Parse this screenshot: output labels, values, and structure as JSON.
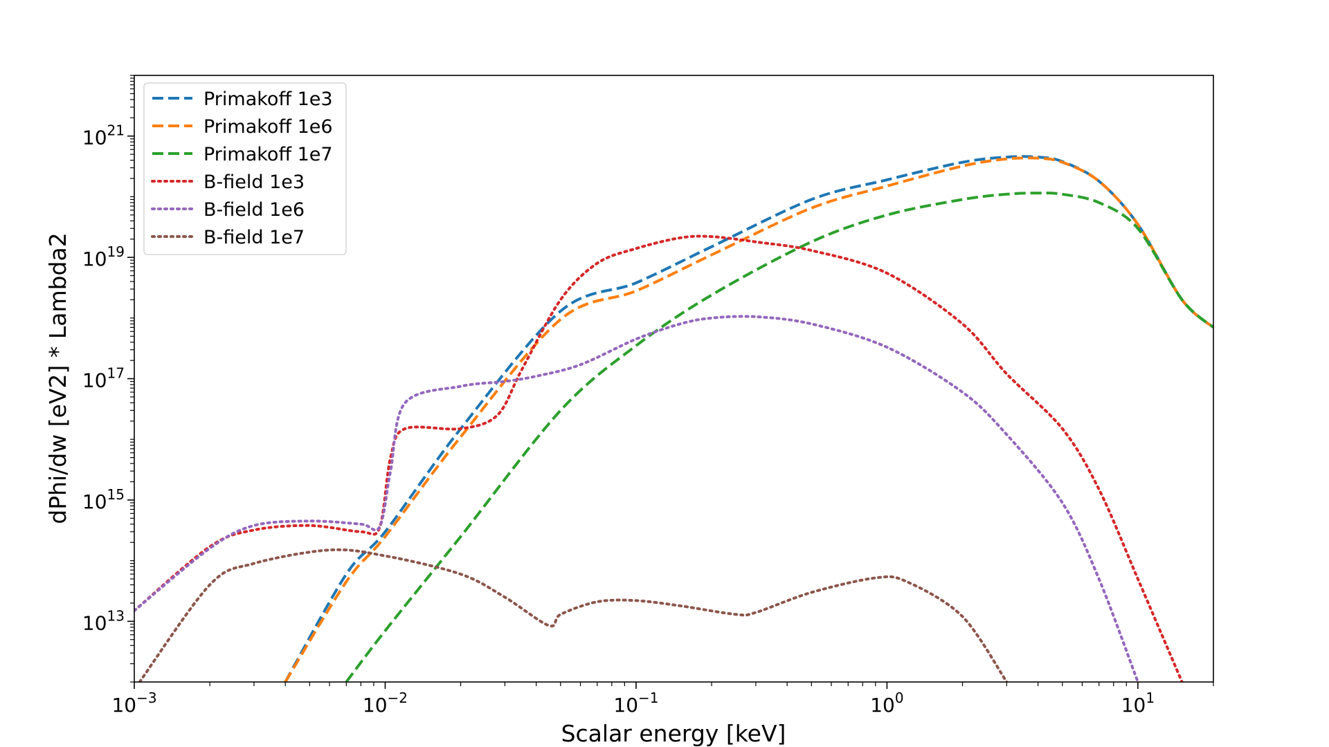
{
  "chart_data": {
    "type": "line",
    "title": "",
    "xlabel": "Scalar energy [keV]",
    "ylabel": "dPhi/dw [eV2] * Lambda2",
    "x_scale": "log",
    "y_scale": "log",
    "xlim": [
      0.001,
      20
    ],
    "ylim": [
      1000000000000.0,
      1e+22
    ],
    "x_ticks": [
      {
        "value": 0.001,
        "base": "10",
        "exp": "−3"
      },
      {
        "value": 0.01,
        "base": "10",
        "exp": "−2"
      },
      {
        "value": 0.1,
        "base": "10",
        "exp": "−1"
      },
      {
        "value": 1,
        "base": "10",
        "exp": "0"
      },
      {
        "value": 10,
        "base": "10",
        "exp": "1"
      }
    ],
    "y_ticks": [
      {
        "value": 10000000000000.0,
        "base": "10",
        "exp": "13"
      },
      {
        "value": 1000000000000000.0,
        "base": "10",
        "exp": "15"
      },
      {
        "value": 1e+17,
        "base": "10",
        "exp": "17"
      },
      {
        "value": 1e+19,
        "base": "10",
        "exp": "19"
      },
      {
        "value": 1e+21,
        "base": "10",
        "exp": "21"
      }
    ],
    "grid": false,
    "legend_position": "top-left",
    "series": [
      {
        "name": "Primakoff 1e3",
        "color": "#1f77b4",
        "style": "dashed",
        "x": [
          0.004,
          0.007,
          0.01,
          0.02,
          0.05,
          0.1,
          0.2,
          0.5,
          1,
          2,
          3,
          4,
          5,
          7,
          10,
          15,
          20
        ],
        "y": [
          1000000000000.0,
          60000000000000.0,
          300000000000000.0,
          1.5e+16,
          1.3e+18,
          3.8e+18,
          1.5e+19,
          9e+19,
          1.9e+20,
          3.7e+20,
          4.5e+20,
          4.5e+20,
          3.8e+20,
          1.8e+20,
          3.5e+19,
          2e+18,
          7e+17
        ]
      },
      {
        "name": "Primakoff 1e6",
        "color": "#ff7f0e",
        "style": "dashed",
        "x": [
          0.004,
          0.007,
          0.01,
          0.02,
          0.05,
          0.1,
          0.2,
          0.5,
          1,
          2,
          3,
          4,
          5,
          7,
          10,
          15,
          20
        ],
        "y": [
          1000000000000.0,
          45000000000000.0,
          250000000000000.0,
          1.1e+16,
          9.5e+17,
          2.8e+18,
          1.1e+19,
          6.5e+19,
          1.5e+20,
          3.2e+20,
          4.2e+20,
          4.3e+20,
          3.7e+20,
          1.8e+20,
          3.5e+19,
          2e+18,
          7e+17
        ]
      },
      {
        "name": "Primakoff 1e7",
        "color": "#2ca02c",
        "style": "dashed",
        "x": [
          0.007,
          0.01,
          0.02,
          0.05,
          0.1,
          0.2,
          0.5,
          1,
          2,
          3,
          4,
          5,
          7,
          10,
          15,
          20
        ],
        "y": [
          1000000000000.0,
          7000000000000.0,
          250000000000000.0,
          3e+16,
          3.5e+17,
          2.4e+18,
          1.8e+19,
          5e+19,
          9e+19,
          1.1e+20,
          1.15e+20,
          1.1e+20,
          8e+19,
          3e+19,
          2e+18,
          7e+17
        ]
      },
      {
        "name": "B-field 1e3",
        "color": "#d62728",
        "style": "dotted",
        "x": [
          0.001,
          0.002,
          0.003,
          0.005,
          0.008,
          0.0095,
          0.0105,
          0.012,
          0.02,
          0.028,
          0.035,
          0.05,
          0.07,
          0.1,
          0.15,
          0.2,
          0.3,
          0.5,
          1,
          2,
          3,
          5,
          7,
          10,
          15
        ],
        "y": [
          15000000000000.0,
          170000000000000.0,
          320000000000000.0,
          380000000000000.0,
          300000000000000.0,
          350000000000000.0,
          5000000000000000.0,
          1.5e+16,
          1.5e+16,
          2.5e+16,
          1.4e+17,
          2e+18,
          8e+18,
          1.4e+19,
          2.1e+19,
          2.2e+19,
          1.8e+19,
          1.3e+19,
          5.5e+18,
          8e+17,
          1.2e+17,
          1.5e+16,
          1500000000000000.0,
          50000000000000.0,
          1000000000000.0
        ]
      },
      {
        "name": "B-field 1e6",
        "color": "#9467bd",
        "style": "dotted",
        "x": [
          0.001,
          0.002,
          0.003,
          0.005,
          0.008,
          0.0095,
          0.0105,
          0.012,
          0.02,
          0.03,
          0.04,
          0.06,
          0.1,
          0.15,
          0.2,
          0.3,
          0.5,
          1,
          2,
          3,
          5,
          7,
          10
        ],
        "y": [
          15000000000000.0,
          160000000000000.0,
          380000000000000.0,
          450000000000000.0,
          400000000000000.0,
          360000000000000.0,
          3000000000000000.0,
          4e+16,
          7.5e+16,
          9e+16,
          1.1e+17,
          1.7e+17,
          4.5e+17,
          8e+17,
          1e+18,
          1.05e+18,
          8e+17,
          3.3e+17,
          6e+16,
          1.2e+16,
          900000000000000.0,
          50000000000000.0,
          1000000000000.0
        ]
      },
      {
        "name": "B-field 1e7",
        "color": "#8c564b",
        "style": "dotted",
        "x": [
          0.00105,
          0.002,
          0.003,
          0.006,
          0.01,
          0.02,
          0.03,
          0.045,
          0.05,
          0.07,
          0.1,
          0.15,
          0.25,
          0.3,
          0.5,
          0.9,
          1.2,
          2,
          3
        ],
        "y": [
          1000000000000.0,
          40000000000000.0,
          90000000000000.0,
          150000000000000.0,
          120000000000000.0,
          60000000000000.0,
          25000000000000.0,
          8500000000000.0,
          13000000000000.0,
          21000000000000.0,
          22000000000000.0,
          18000000000000.0,
          13000000000000.0,
          14000000000000.0,
          30000000000000.0,
          52000000000000.0,
          45000000000000.0,
          12000000000000.0,
          1000000000000.0
        ]
      }
    ]
  }
}
